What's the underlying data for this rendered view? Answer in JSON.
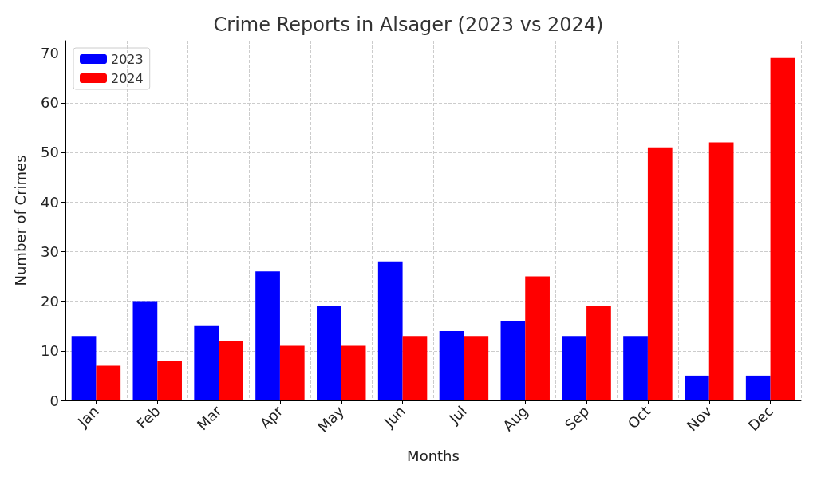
{
  "chart_data": {
    "type": "bar",
    "title": "Crime Reports in Alsager (2023 vs 2024)",
    "xlabel": "Months",
    "ylabel": "Number of Crimes",
    "categories": [
      "Jan",
      "Feb",
      "Mar",
      "Apr",
      "May",
      "Jun",
      "Jul",
      "Aug",
      "Sep",
      "Oct",
      "Nov",
      "Dec"
    ],
    "series": [
      {
        "name": "2023",
        "color": "#0000ff",
        "values": [
          13,
          20,
          15,
          26,
          19,
          28,
          14,
          16,
          13,
          13,
          5,
          5
        ]
      },
      {
        "name": "2024",
        "color": "#ff0000",
        "values": [
          7,
          8,
          12,
          11,
          11,
          13,
          13,
          25,
          19,
          51,
          52,
          69
        ]
      }
    ],
    "ylim": [
      0,
      72.5
    ],
    "yticks": [
      0,
      10,
      20,
      30,
      40,
      50,
      60,
      70
    ],
    "grid": true,
    "legend": "top left"
  }
}
